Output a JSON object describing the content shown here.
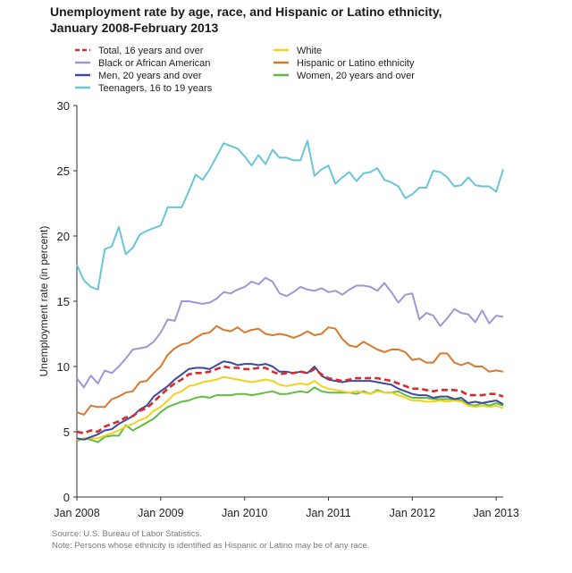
{
  "title": {
    "line1": "Unemployment rate by age, race, and Hispanic or Latino ethnicity,",
    "line2": "January 2008-February 2013"
  },
  "footer": {
    "source": "Source: U.S. Bureau of Labor Statistics.",
    "note": "Note: Persons whose ethnicity is identified as Hispanic or Latino may be of any race."
  },
  "chart_data": {
    "type": "line",
    "ylabel": "Unemployment rate (in percent)",
    "xlabel": "",
    "ylim": [
      0,
      30
    ],
    "yticks": [
      0,
      5,
      10,
      15,
      20,
      25,
      30
    ],
    "xticks": [
      {
        "label": "Jan 2008",
        "month": 0
      },
      {
        "label": "Jan 2009",
        "month": 12
      },
      {
        "label": "Jan 2010",
        "month": 24
      },
      {
        "label": "Jan 2011",
        "month": 36
      },
      {
        "label": "Jan 2012",
        "month": 48
      },
      {
        "label": "Jan 2013",
        "month": 60
      }
    ],
    "x_start": "Jan 2008",
    "x_end": "Feb 2013",
    "grid": false,
    "legend_position": "top",
    "series": [
      {
        "name": "Total, 16 years and over",
        "color": "#d42c2c",
        "dashed": true,
        "values": [
          5.0,
          4.9,
          5.1,
          5.0,
          5.4,
          5.6,
          5.8,
          6.1,
          6.2,
          6.6,
          6.8,
          7.3,
          7.8,
          8.3,
          8.7,
          9.0,
          9.4,
          9.5,
          9.5,
          9.6,
          9.8,
          10.0,
          9.9,
          9.9,
          9.8,
          9.8,
          9.9,
          9.9,
          9.6,
          9.4,
          9.5,
          9.5,
          9.6,
          9.5,
          9.8,
          9.4,
          9.1,
          9.0,
          8.9,
          9.0,
          9.1,
          9.1,
          9.1,
          9.1,
          9.0,
          8.9,
          8.7,
          8.5,
          8.3,
          8.3,
          8.2,
          8.1,
          8.2,
          8.2,
          8.2,
          8.1,
          7.8,
          7.8,
          7.8,
          7.9,
          7.9,
          7.7
        ]
      },
      {
        "name": "White",
        "color": "#f2d21a",
        "dashed": false,
        "values": [
          4.4,
          4.5,
          4.5,
          4.5,
          4.7,
          4.9,
          5.1,
          5.4,
          5.6,
          5.9,
          6.1,
          6.6,
          6.9,
          7.4,
          7.9,
          8.1,
          8.5,
          8.6,
          8.8,
          8.9,
          9.0,
          9.2,
          9.1,
          9.0,
          8.9,
          8.8,
          8.9,
          9.0,
          8.9,
          8.6,
          8.5,
          8.6,
          8.7,
          8.6,
          8.9,
          8.5,
          8.3,
          8.2,
          8.1,
          8.0,
          8.1,
          8.0,
          7.9,
          8.1,
          8.0,
          8.0,
          7.8,
          7.6,
          7.4,
          7.4,
          7.3,
          7.3,
          7.4,
          7.3,
          7.4,
          7.3,
          7.0,
          6.9,
          7.0,
          6.9,
          7.0,
          6.8
        ]
      },
      {
        "name": "Black or African American",
        "color": "#9b99d4",
        "dashed": false,
        "values": [
          9.1,
          8.4,
          9.3,
          8.7,
          9.7,
          9.5,
          10.0,
          10.6,
          11.3,
          11.4,
          11.5,
          11.9,
          12.6,
          13.6,
          13.5,
          15.0,
          15.0,
          14.9,
          14.8,
          14.9,
          15.2,
          15.7,
          15.6,
          15.9,
          16.1,
          16.5,
          16.3,
          16.8,
          16.5,
          15.6,
          15.4,
          15.7,
          16.1,
          15.9,
          15.8,
          16.0,
          15.7,
          15.8,
          15.5,
          15.9,
          16.2,
          16.2,
          16.1,
          15.8,
          16.4,
          15.7,
          14.9,
          15.5,
          15.6,
          13.6,
          14.1,
          13.9,
          13.1,
          13.7,
          14.4,
          14.1,
          14.0,
          13.4,
          14.3,
          13.3,
          13.9,
          13.8
        ]
      },
      {
        "name": "Hispanic or Latino ethnicity",
        "color": "#d9782a",
        "dashed": false,
        "values": [
          6.5,
          6.3,
          7.0,
          6.9,
          6.9,
          7.5,
          7.7,
          8.0,
          8.1,
          8.8,
          8.9,
          9.5,
          10.0,
          10.9,
          11.4,
          11.7,
          11.8,
          12.2,
          12.5,
          12.6,
          13.1,
          12.8,
          12.7,
          13.0,
          12.6,
          12.8,
          12.9,
          12.5,
          12.4,
          12.5,
          12.4,
          12.2,
          12.4,
          12.7,
          12.4,
          12.5,
          13.0,
          12.9,
          12.1,
          11.6,
          11.5,
          11.9,
          11.6,
          11.3,
          11.1,
          11.3,
          11.3,
          11.1,
          10.5,
          10.6,
          10.3,
          10.3,
          11.0,
          11.0,
          10.3,
          10.1,
          10.3,
          10.0,
          10.0,
          9.6,
          9.7,
          9.6
        ]
      },
      {
        "name": "Men, 20 years and over",
        "color": "#3e4a9a",
        "dashed": false,
        "values": [
          4.5,
          4.4,
          4.6,
          4.8,
          5.1,
          5.2,
          5.6,
          5.9,
          6.2,
          6.7,
          7.0,
          7.7,
          8.1,
          8.5,
          9.0,
          9.4,
          9.8,
          9.9,
          9.9,
          9.8,
          10.1,
          10.4,
          10.3,
          10.1,
          10.2,
          10.2,
          10.1,
          10.2,
          10.0,
          9.6,
          9.6,
          9.5,
          9.6,
          9.5,
          10.0,
          9.3,
          9.0,
          8.9,
          8.8,
          8.9,
          8.9,
          8.9,
          8.9,
          8.8,
          8.7,
          8.6,
          8.3,
          8.1,
          7.9,
          7.8,
          7.8,
          7.6,
          7.7,
          7.7,
          7.5,
          7.6,
          7.2,
          7.3,
          7.2,
          7.3,
          7.4,
          7.1
        ]
      },
      {
        "name": "Women, 20 years and over",
        "color": "#5ebd3e",
        "dashed": false,
        "values": [
          4.3,
          4.5,
          4.4,
          4.2,
          4.6,
          4.7,
          4.7,
          5.5,
          5.1,
          5.4,
          5.7,
          6.0,
          6.5,
          6.9,
          7.1,
          7.3,
          7.4,
          7.6,
          7.7,
          7.6,
          7.8,
          7.8,
          7.8,
          7.9,
          7.9,
          7.8,
          7.9,
          8.0,
          8.1,
          7.9,
          7.9,
          8.0,
          8.1,
          8.0,
          8.4,
          8.1,
          8.0,
          8.0,
          8.0,
          8.0,
          7.9,
          8.1,
          7.9,
          8.2,
          8.0,
          8.0,
          8.1,
          7.8,
          7.6,
          7.6,
          7.6,
          7.5,
          7.5,
          7.5,
          7.5,
          7.4,
          7.1,
          7.0,
          7.2,
          7.0,
          7.2,
          7.0
        ]
      },
      {
        "name": "Teenagers, 16 to 19 years",
        "color": "#68c6d8",
        "dashed": false,
        "values": [
          17.8,
          16.6,
          16.1,
          15.9,
          19.0,
          19.2,
          20.7,
          18.6,
          19.1,
          20.1,
          20.4,
          20.6,
          20.8,
          22.2,
          22.2,
          22.2,
          23.4,
          24.7,
          24.3,
          25.1,
          26.1,
          27.1,
          26.9,
          26.7,
          26.1,
          25.4,
          26.2,
          25.5,
          26.6,
          26.0,
          26.0,
          25.8,
          25.8,
          27.3,
          24.6,
          25.1,
          25.4,
          24.0,
          24.5,
          24.9,
          24.2,
          24.8,
          24.9,
          25.2,
          24.3,
          24.1,
          23.8,
          22.9,
          23.2,
          23.7,
          23.7,
          25.0,
          24.9,
          24.5,
          23.8,
          23.9,
          24.5,
          23.9,
          23.8,
          23.8,
          23.4,
          25.1
        ]
      }
    ]
  }
}
